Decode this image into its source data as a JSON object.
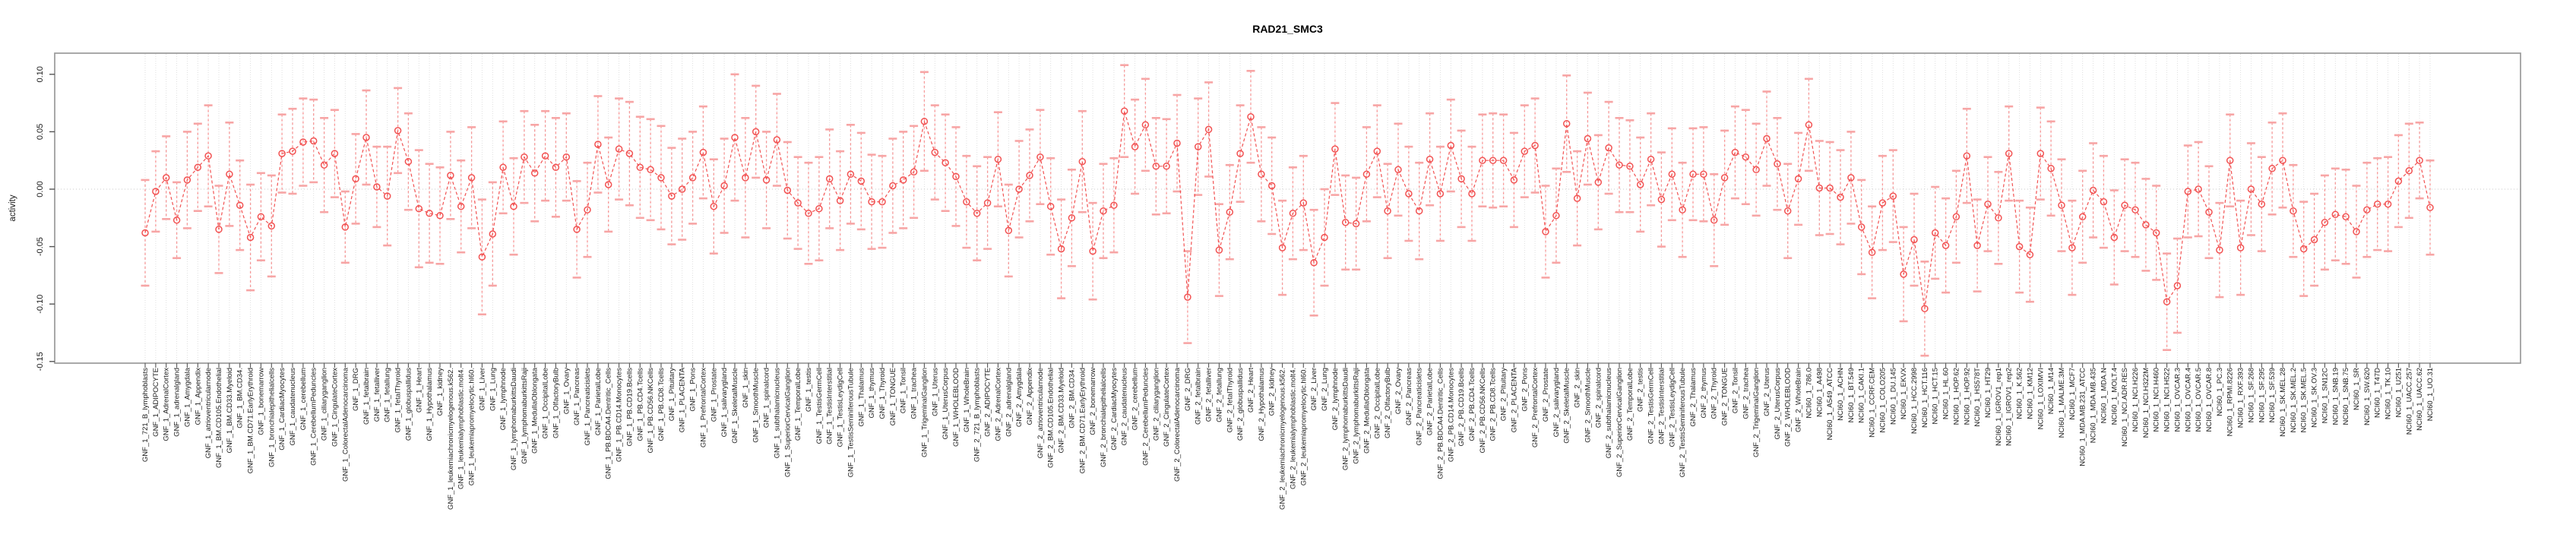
{
  "title": "RAD21_SMC3",
  "colors": {
    "point": "#f25252",
    "line": "#f25252",
    "errorbar": "#f79898",
    "cap": "#f7a5a5",
    "grid": "#dcdcdc",
    "zero_line": "#c9c9c9",
    "box": "#9a9a9a",
    "tick": "#555555",
    "label_text": "#1a1a1a"
  },
  "chart_data": {
    "type": "scatter",
    "subtype": "points-with-error-bars",
    "title": "RAD21_SMC3",
    "xlabel": "",
    "ylabel": "activity",
    "ylim": [
      -0.155,
      0.118
    ],
    "yticks": [
      0.1,
      0.05,
      0.0,
      -0.05,
      -0.1,
      -0.15
    ],
    "grid": "vertical dotted gridline at every category; horizontal dotted line at y=0",
    "legend": "none",
    "marker": "open-circle",
    "line_style": "dashed",
    "groups": [
      {
        "prefix": "GNF_1",
        "count": 79
      },
      {
        "prefix": "GNF_2",
        "count": 79
      },
      {
        "prefix": "NCI60_1",
        "count": 60
      }
    ],
    "categories": [
      "GNF_1_721_B_lymphoblasts",
      "GNF_1_ADIPOCYTE",
      "GNF_1_AdrenalCortex",
      "GNF_1_adrenalgland",
      "GNF_1_Amygdala",
      "GNF_1_Appendix",
      "GNF_1_atrioventricularnode",
      "GNF_1_BM.CD105.Endothelial",
      "GNF_1_BM.CD33.Myeloid",
      "GNF_1_BM.CD34.",
      "GNF_1_BM.CD71.EarlyErythroid",
      "GNF_1_bonemarrow",
      "GNF_1_bronchialepithelialcells",
      "GNF_1_CardiacMyocytes",
      "GNF_1_caudatenucleus",
      "GNF_1_cerebellum",
      "GNF_1_CerebellumPeduncles",
      "GNF_1_ciliaryganglion",
      "GNF_1_CingulateCortex",
      "GNF_1_ColorectalAdenocarcinoma",
      "GNF_1_DRG",
      "GNF_1_fetalbrain",
      "GNF_1_fetalliver",
      "GNF_1_fetallung",
      "GNF_1_fetalThyroid",
      "GNF_1_globuspallidus",
      "GNF_1_Heart",
      "GNF_1_Hypothalamus",
      "GNF_1_kidney",
      "GNF_1_leukemiachronicmyelogenous.k562.",
      "GNF_1_leukemialymphoblastic.molt4.",
      "GNF_1_leukemiapromyelocytic.hl60.",
      "GNF_1_Liver",
      "GNF_1_Lung",
      "GNF_1_lymphnode",
      "GNF_1_lymphomaburkittsDaudi",
      "GNF_1_lymphomaburkittsRaji",
      "GNF_1_MedullaOblongata",
      "GNF_1_OccipitalLobe",
      "GNF_1_OlfactoryBulb",
      "GNF_1_Ovary",
      "GNF_1_Pancreas",
      "GNF_1_Pancreaticislets",
      "GNF_1_ParietalLobe",
      "GNF_1_PB.BDCA4.Dentritic_Cells",
      "GNF_1_PB.CD14.Monocytes",
      "GNF_1_PB.CD19.Bcells",
      "GNF_1_PB.CD4.Tcells",
      "GNF_1_PB.CD56.NKCells",
      "GNF_1_PB.CD8.Tcells",
      "GNF_1_Pituitary",
      "GNF_1_PLACENTA",
      "GNF_1_Pons",
      "GNF_1_PrefrontalCortex",
      "GNF_1_Prostate",
      "GNF_1_salivarygland",
      "GNF_1_SkeletalMuscle",
      "GNF_1_skin",
      "GNF_1_SmoothMuscle",
      "GNF_1_spinalcord",
      "GNF_1_subthalamicnucleus",
      "GNF_1_SuperiorCervicalGanglion",
      "GNF_1_TemporalLobe",
      "GNF_1_testis",
      "GNF_1_TestisGermCell",
      "GNF_1_TestisInterstitial",
      "GNF_1_TestisLeydigCell",
      "GNF_1_TestisSeminiferousTubule",
      "GNF_1_Thalamus",
      "GNF_1_thymus",
      "GNF_1_Thyroid",
      "GNF_1_TONGUE",
      "GNF_1_Tonsil",
      "GNF_1_trachea",
      "GNF_1_TrigeminalGanglion",
      "GNF_1_Uterus",
      "GNF_1_UterusCorpus",
      "GNF_1_WHOLEBLOOD",
      "GNF_1_WholeBrain",
      "GNF_2_721_B_lymphoblasts",
      "GNF_2_ADIPOCYTE",
      "GNF_2_AdrenalCortex",
      "GNF_2_adrenalgland",
      "GNF_2_Amygdala",
      "GNF_2_Appendix",
      "GNF_2_atrioventricularnode",
      "GNF_2_BM.CD105.Endothelial",
      "GNF_2_BM.CD33.Myeloid",
      "GNF_2_BM.CD34.",
      "GNF_2_BM.CD71.EarlyErythroid",
      "GNF_2_bonemarrow",
      "GNF_2_bronchialepithelialcells",
      "GNF_2_CardiacMyocytes",
      "GNF_2_caudatenucleus",
      "GNF_2_cerebellum",
      "GNF_2_CerebellumPeduncles",
      "GNF_2_ciliaryganglion",
      "GNF_2_CingulateCortex",
      "GNF_2_ColorectalAdenocarcinoma",
      "GNF_2_DRG",
      "GNF_2_fetalbrain",
      "GNF_2_fetalliver",
      "GNF_2_fetallung",
      "GNF_2_fetalThyroid",
      "GNF_2_globuspallidus",
      "GNF_2_Heart",
      "GNF_2_Hypothalamus",
      "GNF_2_kidney",
      "GNF_2_leukemiachronicmyelogenous.k562.",
      "GNF_2_leukemialymphoblastic.molt4.",
      "GNF_2_leukemiapromyelocytic.hl60.",
      "GNF_2_Liver",
      "GNF_2_Lung",
      "GNF_2_lymphnode",
      "GNF_2_lymphomaburkittsDaudi",
      "GNF_2_lymphomaburkittsRaji",
      "GNF_2_MedullaOblongata",
      "GNF_2_OccipitalLobe",
      "GNF_2_OlfactoryBulb",
      "GNF_2_Ovary",
      "GNF_2_Pancreas",
      "GNF_2_Pancreaticislets",
      "GNF_2_ParietalLobe",
      "GNF_2_PB.BDCA4.Dentritic_Cells",
      "GNF_2_PB.CD14.Monocytes",
      "GNF_2_PB.CD19.Bcells",
      "GNF_2_PB.CD4.Tcells",
      "GNF_2_PB.CD56.NKCells",
      "GNF_2_PB.CD8.Tcells",
      "GNF_2_Pituitary",
      "GNF_2_PLACENTA",
      "GNF_2_Pons",
      "GNF_2_PrefrontalCortex",
      "GNF_2_Prostate",
      "GNF_2_salivarygland",
      "GNF_2_SkeletalMuscle",
      "GNF_2_skin",
      "GNF_2_SmoothMuscle",
      "GNF_2_spinalcord",
      "GNF_2_subthalamicnucleus",
      "GNF_2_SuperiorCervicalGanglion",
      "GNF_2_TemporalLobe",
      "GNF_2_testis",
      "GNF_2_TestisGermCell",
      "GNF_2_TestisInterstitial",
      "GNF_2_TestisLeydigCell",
      "GNF_2_TestisSeminiferousTubule",
      "GNF_2_Thalamus",
      "GNF_2_thymus",
      "GNF_2_Thyroid",
      "GNF_2_TONGUE",
      "GNF_2_Tonsil",
      "GNF_2_trachea",
      "GNF_2_TrigeminalGanglion",
      "GNF_2_Uterus",
      "GNF_2_UterusCorpus",
      "GNF_2_WHOLEBLOOD",
      "GNF_2_WholeBrain",
      "NCI60_1_786.0",
      "NCI60_1_A498",
      "NCI60_1_A549_ATCC",
      "NCI60_1_ACHN",
      "NCI60_1_BT.549",
      "NCI60_1_CAKI.1",
      "NCI60_1_CCRF.CEM",
      "NCI60_1_COLO205",
      "NCI60_1_DU.145",
      "NCI60_1_EKVX",
      "NCI60_1_HCC.2998",
      "NCI60_1_HCT.116",
      "NCI60_1_HCT.15",
      "NCI60_1_HL.60",
      "NCI60_1_HOP.62",
      "NCI60_1_HOP.92",
      "NCI60_1_HS578T",
      "NCI60_1_HT29",
      "NCI60_1_IGROV1_rep1",
      "NCI60_1_IGROV1_rep2",
      "NCI60_1_K.562",
      "NCI60_1_KM12",
      "NCI60_1_LOXIMVI",
      "NCI60_1_M14",
      "NCI60_1_MALME.3M",
      "NCI60_1_MCF7",
      "NCI60_1_MDA.MB.231_ATCC",
      "NCI60_1_MDA.MB.435",
      "NCI60_1_MDA.N",
      "NCI60_1_MOLT.4",
      "NCI60_1_NCI.ADR.RES",
      "NCI60_1_NCI.H226",
      "NCI60_1_NCI.H322M",
      "NCI60_1_NCI.H460",
      "NCI60_1_NCI.H522",
      "NCI60_1_OVCAR.3",
      "NCI60_1_OVCAR.4",
      "NCI60_1_OVCAR.5",
      "NCI60_1_OVCAR.8",
      "NCI60_1_PC.3",
      "NCI60_1_RPMI.8226",
      "NCI60_1_RXF.393",
      "NCI60_1_SF.268",
      "NCI60_1_SF.295",
      "NCI60_1_SF.539",
      "NCI60_1_SK.MEL.28",
      "NCI60_1_SK.MEL.2",
      "NCI60_1_SK.MEL.5",
      "NCI60_1_SK.OV.3",
      "NCI60_1_SN12C",
      "NCI60_1_SNB.19",
      "NCI60_1_SNB.75",
      "NCI60_1_SR",
      "NCI60_1_SW.620",
      "NCI60_1_T47D",
      "NCI60_1_TK.10",
      "NCI60_1_U251",
      "NCI60_1_UACC.257",
      "NCI60_1_UACC.62",
      "NCI60_1_UO.31"
    ],
    "values": [
      -0.038,
      -0.002,
      0.01,
      -0.027,
      0.008,
      0.019,
      0.029,
      -0.035,
      0.013,
      -0.014,
      -0.042,
      -0.024,
      -0.032,
      0.031,
      0.033,
      0.041,
      0.042,
      0.021,
      0.031,
      -0.033,
      0.009,
      0.045,
      0.002,
      -0.006,
      0.051,
      0.024,
      -0.017,
      -0.021,
      -0.023,
      0.012,
      -0.015,
      0.01,
      -0.059,
      -0.039,
      0.019,
      -0.015,
      0.028,
      0.014,
      0.029,
      0.019,
      0.028,
      -0.035,
      -0.018,
      0.039,
      0.004,
      0.035,
      0.031,
      0.019,
      0.017,
      0.01,
      -0.006,
      0.0,
      0.01,
      0.032,
      -0.015,
      0.003,
      0.045,
      0.01,
      0.05,
      0.008,
      0.043,
      -0.001,
      -0.012,
      -0.021,
      -0.017,
      0.009,
      -0.01,
      0.013,
      0.007,
      -0.011,
      -0.011,
      0.003,
      0.008,
      0.015,
      0.059,
      0.032,
      0.023,
      0.011,
      -0.011,
      -0.021,
      -0.012,
      0.026,
      -0.036,
      0.0,
      0.012,
      0.028,
      -0.015,
      -0.052,
      -0.025,
      0.024,
      -0.054,
      -0.019,
      -0.014,
      0.068,
      0.037,
      0.056,
      0.02,
      0.02,
      0.04,
      -0.094,
      0.037,
      0.052,
      -0.053,
      -0.02,
      0.031,
      0.063,
      0.013,
      0.003,
      -0.051,
      -0.021,
      -0.012,
      -0.064,
      -0.042,
      0.035,
      -0.029,
      -0.03,
      0.013,
      0.033,
      -0.019,
      0.017,
      -0.004,
      -0.019,
      0.026,
      -0.004,
      0.038,
      0.009,
      -0.004,
      0.025,
      0.025,
      0.025,
      0.008,
      0.033,
      0.038,
      -0.037,
      -0.023,
      0.057,
      -0.008,
      0.044,
      0.006,
      0.036,
      0.021,
      0.02,
      0.004,
      0.026,
      -0.009,
      0.013,
      -0.018,
      0.013,
      0.013,
      -0.027,
      0.01,
      0.032,
      0.028,
      0.017,
      0.044,
      0.022,
      -0.019,
      0.009,
      0.056,
      0.001,
      0.001,
      -0.007,
      0.01,
      -0.033,
      -0.055,
      -0.012,
      -0.006,
      -0.074,
      -0.044,
      -0.104,
      -0.038,
      -0.049,
      -0.024,
      0.029,
      -0.049,
      -0.013,
      -0.025,
      0.031,
      -0.05,
      -0.057,
      0.031,
      0.018,
      -0.014,
      -0.051,
      -0.024,
      -0.001,
      -0.011,
      -0.042,
      -0.014,
      -0.018,
      -0.031,
      -0.038,
      -0.098,
      -0.084,
      -0.002,
      0.0,
      -0.02,
      -0.053,
      0.025,
      -0.051,
      0.0,
      -0.013,
      0.018,
      0.025,
      -0.019,
      -0.052,
      -0.044,
      -0.029,
      -0.022,
      -0.024,
      -0.037,
      -0.018,
      -0.013,
      -0.013,
      0.007,
      0.016,
      0.025,
      -0.016
    ],
    "errors": [
      0.046,
      0.035,
      0.036,
      0.033,
      0.042,
      0.038,
      0.044,
      0.038,
      0.045,
      0.039,
      0.046,
      0.038,
      0.044,
      0.034,
      0.037,
      0.038,
      0.036,
      0.041,
      0.038,
      0.031,
      0.039,
      0.041,
      0.035,
      0.043,
      0.037,
      0.042,
      0.051,
      0.043,
      0.042,
      0.038,
      0.04,
      0.044,
      0.05,
      0.045,
      0.04,
      0.042,
      0.04,
      0.042,
      0.039,
      0.043,
      0.038,
      0.042,
      0.041,
      0.042,
      0.041,
      0.044,
      0.045,
      0.044,
      0.044,
      0.045,
      0.042,
      0.044,
      0.04,
      0.04,
      0.041,
      0.041,
      0.055,
      0.052,
      0.04,
      0.042,
      0.04,
      0.042,
      0.04,
      0.044,
      0.045,
      0.043,
      0.043,
      0.043,
      0.042,
      0.041,
      0.04,
      0.041,
      0.042,
      0.04,
      0.043,
      0.041,
      0.042,
      0.043,
      0.04,
      0.041,
      0.04,
      0.041,
      0.04,
      0.042,
      0.04,
      0.041,
      0.042,
      0.043,
      0.042,
      0.044,
      0.042,
      0.041,
      0.041,
      0.04,
      0.041,
      0.04,
      0.042,
      0.041,
      0.042,
      0.04,
      0.042,
      0.041,
      0.04,
      0.041,
      0.042,
      0.04,
      0.041,
      0.042,
      0.041,
      0.04,
      0.041,
      0.046,
      0.042,
      0.04,
      0.041,
      0.04,
      0.041,
      0.04,
      0.041,
      0.04,
      0.041,
      0.042,
      0.04,
      0.041,
      0.04,
      0.042,
      0.041,
      0.04,
      0.041,
      0.04,
      0.041,
      0.04,
      0.041,
      0.04,
      0.041,
      0.042,
      0.041,
      0.04,
      0.041,
      0.04,
      0.041,
      0.04,
      0.041,
      0.04,
      0.041,
      0.04,
      0.041,
      0.04,
      0.041,
      0.04,
      0.041,
      0.04,
      0.041,
      0.04,
      0.041,
      0.04,
      0.041,
      0.04,
      0.04,
      0.041,
      0.04,
      0.041,
      0.04,
      0.041,
      0.04,
      0.041,
      0.04,
      0.041,
      0.04,
      0.041,
      0.04,
      0.041,
      0.04,
      0.041,
      0.04,
      0.041,
      0.04,
      0.041,
      0.04,
      0.041,
      0.04,
      0.041,
      0.04,
      0.041,
      0.04,
      0.041,
      0.04,
      0.041,
      0.04,
      0.041,
      0.04,
      0.041,
      0.042,
      0.041,
      0.04,
      0.041,
      0.04,
      0.041,
      0.04,
      0.041,
      0.04,
      0.041,
      0.04,
      0.041,
      0.04,
      0.041,
      0.04,
      0.041,
      0.04,
      0.041,
      0.04,
      0.041,
      0.04,
      0.041,
      0.04,
      0.041,
      0.033,
      0.041
    ]
  }
}
